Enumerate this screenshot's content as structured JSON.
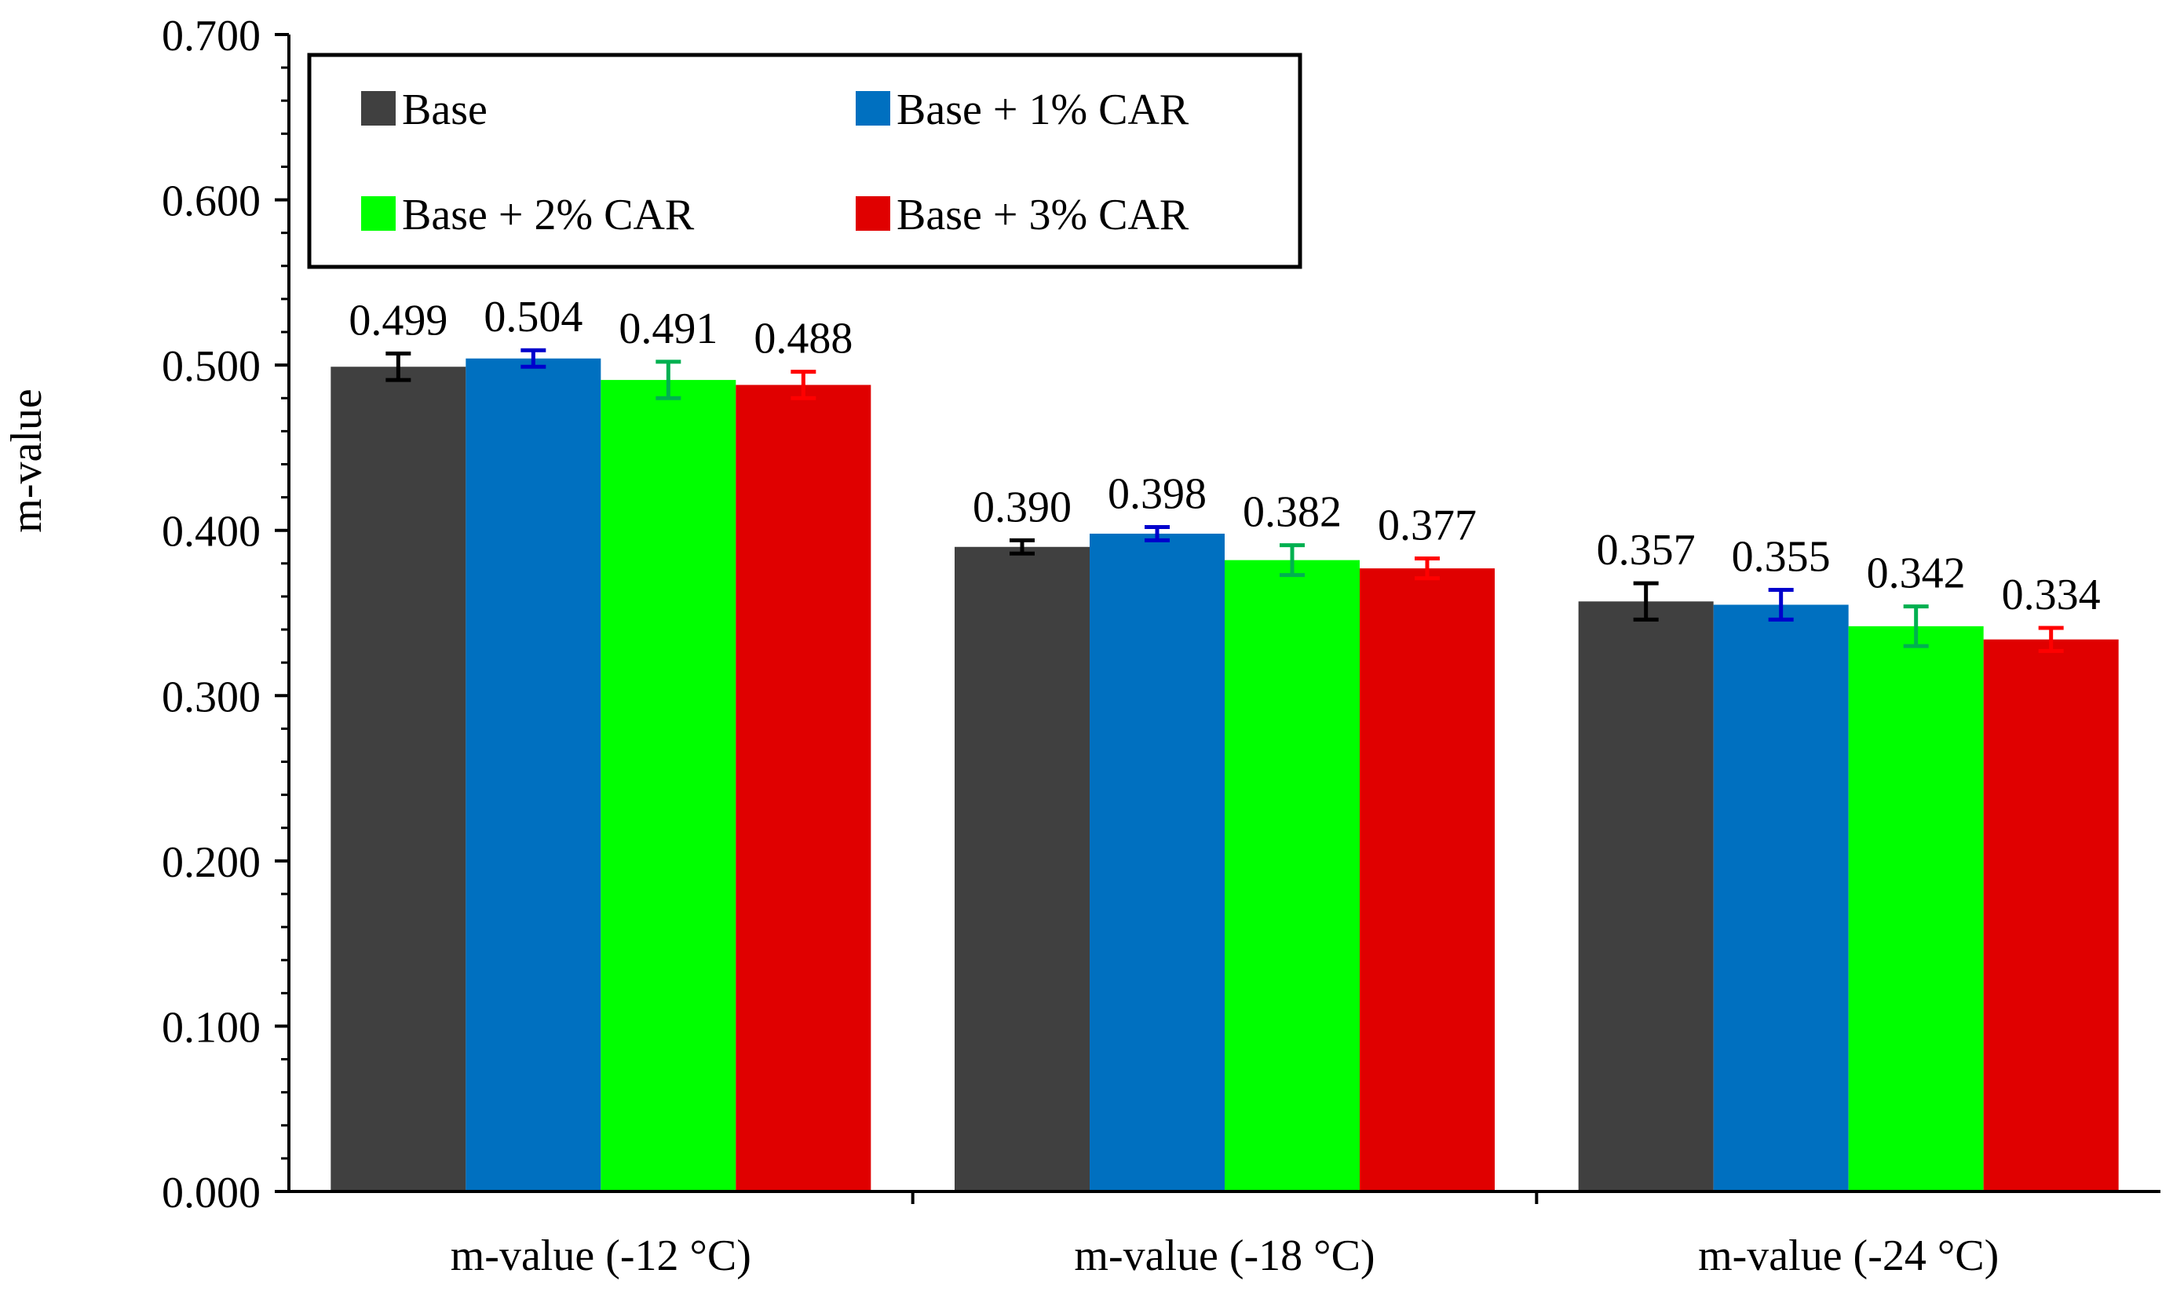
{
  "chart_data": {
    "type": "bar",
    "title": "",
    "xlabel": "",
    "ylabel": "m-value",
    "ylim": [
      0,
      0.7
    ],
    "ytick_step": 0.1,
    "ytick_labels": [
      "0.000",
      "0.100",
      "0.200",
      "0.300",
      "0.400",
      "0.500",
      "0.600",
      "0.700"
    ],
    "grid": false,
    "legend_position": "top-left",
    "categories": [
      "m-value (-12 °C)",
      "m-value (-18 °C)",
      "m-value (-24 °C)"
    ],
    "series": [
      {
        "name": "Base",
        "color": "#404040",
        "error_color": "#000000",
        "values": [
          0.499,
          0.39,
          0.357
        ],
        "errors": [
          0.008,
          0.004,
          0.011
        ],
        "labels": [
          "0.499",
          "0.390",
          "0.357"
        ]
      },
      {
        "name": "Base + 1% CAR",
        "color": "#0070C0",
        "error_color": "#0000CC",
        "values": [
          0.504,
          0.398,
          0.355
        ],
        "errors": [
          0.005,
          0.004,
          0.009
        ],
        "labels": [
          "0.504",
          "0.398",
          "0.355"
        ]
      },
      {
        "name": "Base + 2% CAR",
        "color": "#00FF00",
        "error_color": "#00B050",
        "values": [
          0.491,
          0.382,
          0.342
        ],
        "errors": [
          0.011,
          0.009,
          0.012
        ],
        "labels": [
          "0.491",
          "0.382",
          "0.342"
        ]
      },
      {
        "name": "Base + 3% CAR",
        "color": "#E00000",
        "error_color": "#FF0000",
        "values": [
          0.488,
          0.377,
          0.334
        ],
        "errors": [
          0.008,
          0.006,
          0.007
        ],
        "labels": [
          "0.488",
          "0.377",
          "0.334"
        ]
      }
    ]
  }
}
